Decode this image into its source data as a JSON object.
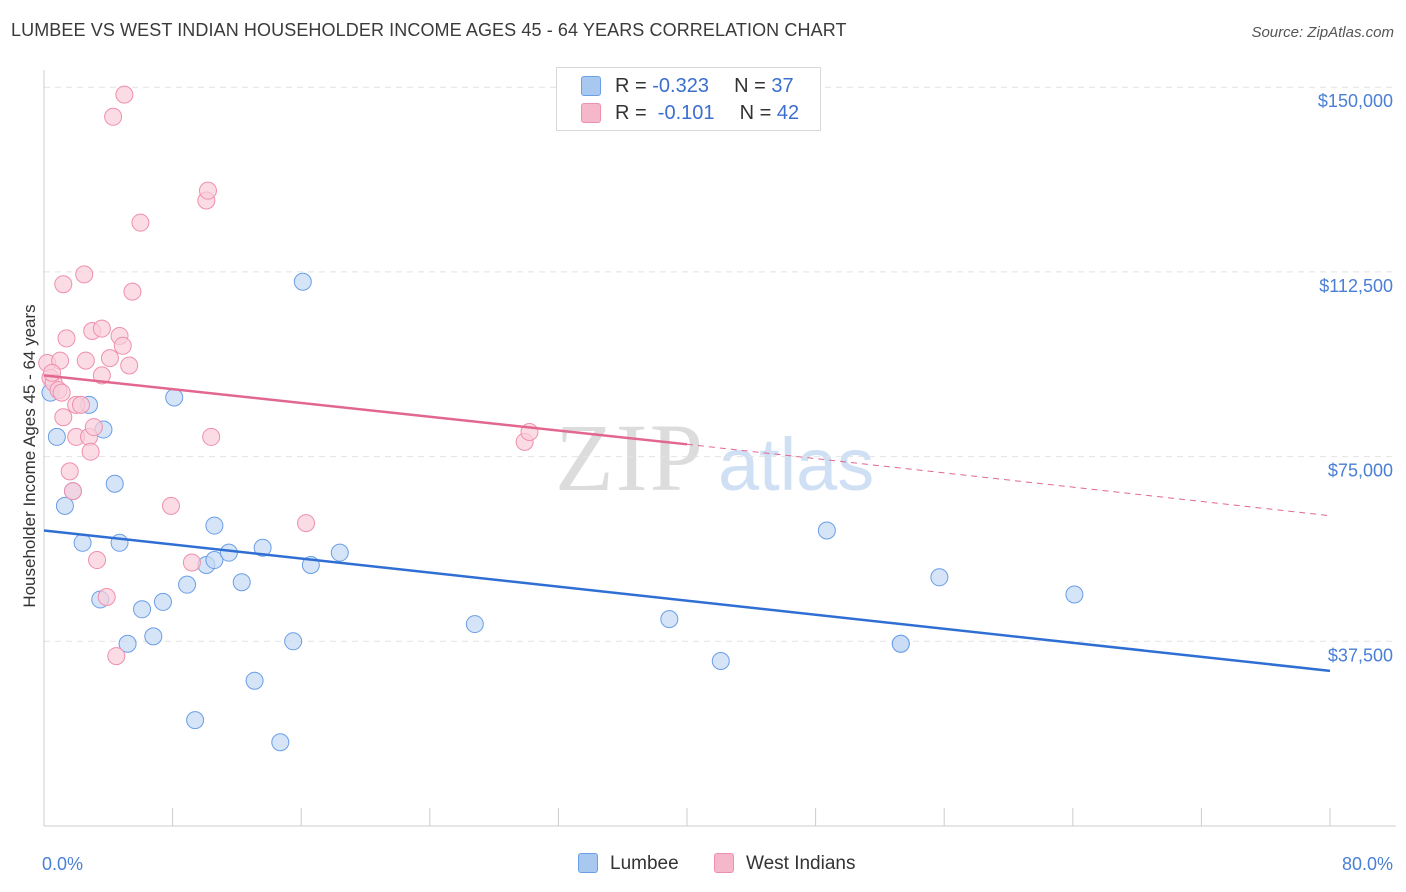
{
  "title": "LUMBEE VS WEST INDIAN HOUSEHOLDER INCOME AGES 45 - 64 YEARS CORRELATION CHART",
  "source": "Source: ZipAtlas.com",
  "watermark": {
    "zip": "ZIP",
    "atlas": "atlas"
  },
  "stats": [
    {
      "r_label": "R = ",
      "r_value": "-0.323",
      "n_label": "N = ",
      "n_value": "37",
      "color": "#a9c8f0"
    },
    {
      "r_label": "R = ",
      "r_value": " -0.101",
      "n_label": "N = ",
      "n_value": "42",
      "color": "#f5b8cb"
    }
  ],
  "legend": [
    {
      "label": "Lumbee",
      "color": "#a9c8f0"
    },
    {
      "label": "West Indians",
      "color": "#f5b8cb"
    }
  ],
  "chart_data": {
    "type": "scatter",
    "ylabel": "Householder Income Ages 45 - 64 years",
    "x_tick_labels": [
      "0.0%",
      "80.0%"
    ],
    "y_tick_labels": [
      "$150,000",
      "$112,500",
      "$75,000",
      "$37,500"
    ],
    "y_ticks": [
      150000,
      112500,
      75000,
      37500
    ],
    "xlim": [
      0,
      80
    ],
    "ylim": [
      0,
      153500
    ],
    "grid": "horizontal dashed",
    "legend_position": "bottom-center",
    "series": [
      {
        "name": "Lumbee",
        "color": "#6a9ee6",
        "fill": "#c4d9f5",
        "points": [
          [
            0.4,
            88000
          ],
          [
            0.8,
            79000
          ],
          [
            1.3,
            65000
          ],
          [
            1.8,
            68000
          ],
          [
            2.4,
            57500
          ],
          [
            2.8,
            85500
          ],
          [
            3.5,
            46000
          ],
          [
            3.7,
            80500
          ],
          [
            4.4,
            69500
          ],
          [
            4.7,
            57500
          ],
          [
            5.2,
            37000
          ],
          [
            6.1,
            44000
          ],
          [
            6.8,
            38500
          ],
          [
            7.4,
            45500
          ],
          [
            8.1,
            87000
          ],
          [
            8.9,
            49000
          ],
          [
            9.4,
            21500
          ],
          [
            10.1,
            53000
          ],
          [
            10.6,
            61000
          ],
          [
            10.6,
            54000
          ],
          [
            11.5,
            55500
          ],
          [
            12.3,
            49500
          ],
          [
            13.1,
            29500
          ],
          [
            13.6,
            56500
          ],
          [
            14.7,
            17000
          ],
          [
            15.5,
            37500
          ],
          [
            16.1,
            110500
          ],
          [
            16.6,
            53000
          ],
          [
            18.4,
            55500
          ],
          [
            26.8,
            41000
          ],
          [
            38.9,
            42000
          ],
          [
            42.1,
            33500
          ],
          [
            48.7,
            60000
          ],
          [
            53.3,
            37000
          ],
          [
            53.3,
            37000
          ],
          [
            55.7,
            50500
          ],
          [
            64.1,
            47000
          ]
        ]
      },
      {
        "name": "West Indians",
        "color": "#ef8fae",
        "fill": "#f9cdda",
        "points": [
          [
            0.2,
            94000
          ],
          [
            0.4,
            91000
          ],
          [
            0.6,
            90000
          ],
          [
            0.9,
            88500
          ],
          [
            1.0,
            94500
          ],
          [
            1.2,
            83000
          ],
          [
            1.2,
            110000
          ],
          [
            1.4,
            99000
          ],
          [
            1.6,
            72000
          ],
          [
            1.8,
            68000
          ],
          [
            2.0,
            85500
          ],
          [
            2.0,
            79000
          ],
          [
            2.3,
            85500
          ],
          [
            2.5,
            112000
          ],
          [
            2.6,
            94500
          ],
          [
            2.8,
            79000
          ],
          [
            2.9,
            76000
          ],
          [
            3.0,
            100500
          ],
          [
            3.1,
            81000
          ],
          [
            3.3,
            54000
          ],
          [
            3.6,
            91500
          ],
          [
            3.6,
            101000
          ],
          [
            3.9,
            46500
          ],
          [
            4.1,
            95000
          ],
          [
            4.3,
            144000
          ],
          [
            4.5,
            34500
          ],
          [
            4.7,
            99500
          ],
          [
            4.9,
            97500
          ],
          [
            5.0,
            148500
          ],
          [
            5.3,
            93500
          ],
          [
            5.5,
            108500
          ],
          [
            6.0,
            122500
          ],
          [
            7.9,
            65000
          ],
          [
            9.2,
            53500
          ],
          [
            10.1,
            127000
          ],
          [
            10.2,
            129000
          ],
          [
            10.4,
            79000
          ],
          [
            16.3,
            61500
          ],
          [
            29.9,
            78000
          ],
          [
            30.2,
            80000
          ],
          [
            0.5,
            92000
          ],
          [
            1.1,
            88000
          ]
        ]
      }
    ],
    "trend_lines": [
      {
        "series": "Lumbee",
        "x": [
          0,
          80
        ],
        "y": [
          60000,
          31500
        ],
        "style": "solid"
      },
      {
        "series": "West Indians",
        "x": [
          0,
          40
        ],
        "y": [
          91500,
          77500
        ],
        "style": "solid"
      },
      {
        "series": "West Indians",
        "x": [
          40,
          80
        ],
        "y": [
          77500,
          63000
        ],
        "style": "dashed"
      }
    ]
  }
}
